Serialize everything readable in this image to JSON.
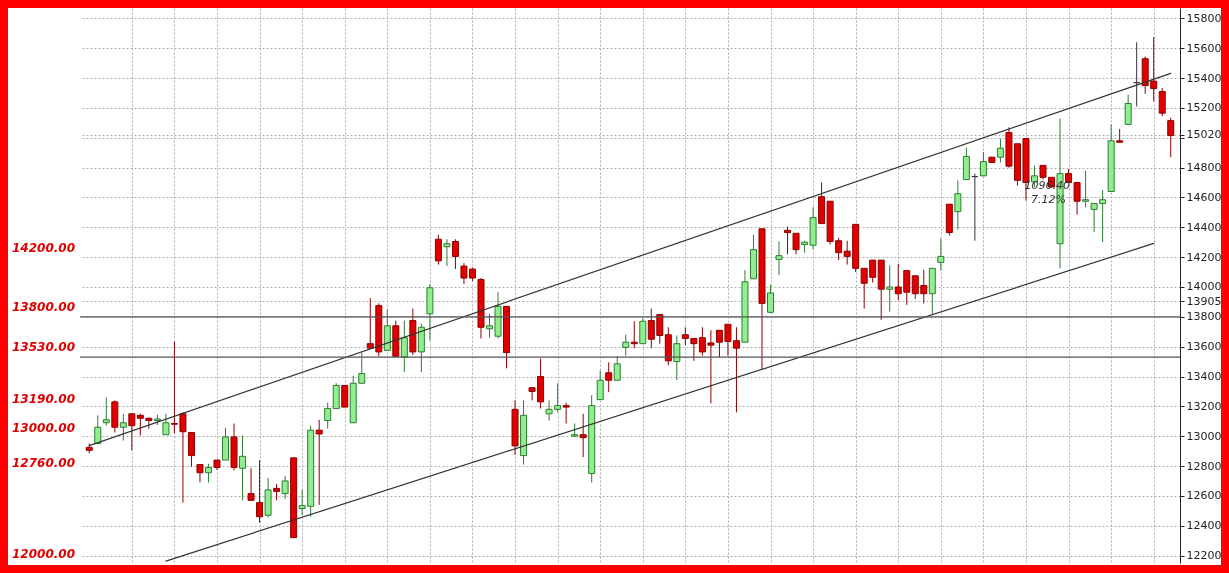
{
  "chart_data": {
    "type": "candlestick",
    "categories": [
      null,
      null,
      null,
      null,
      null,
      null,
      null,
      null,
      null,
      null,
      null,
      null,
      null,
      null,
      null,
      null,
      null,
      null,
      null,
      null,
      null,
      null,
      null,
      null,
      null,
      null,
      null,
      null,
      null,
      null,
      null,
      null,
      null,
      null,
      null,
      null,
      null,
      null,
      null,
      null,
      null,
      null,
      null,
      null,
      null,
      null,
      null,
      null,
      null,
      null,
      null,
      null,
      null,
      null,
      null,
      null,
      null,
      null,
      null,
      null,
      null,
      null,
      null,
      null,
      null,
      null,
      null,
      null,
      null,
      null,
      null,
      null,
      null,
      null,
      null,
      null,
      null,
      null,
      null,
      null,
      null,
      null,
      null,
      null,
      null,
      null,
      null,
      null,
      null,
      null,
      null,
      null,
      null,
      null,
      null,
      null,
      null,
      null,
      null,
      null,
      null,
      null,
      null,
      null,
      null,
      null,
      null,
      null,
      null,
      null,
      null,
      null,
      null,
      null,
      null,
      null,
      null,
      null,
      null,
      null,
      null,
      null,
      null,
      null,
      null,
      null,
      null,
      null
    ],
    "ohlc": [
      [
        12925,
        12950,
        12885,
        12905
      ],
      [
        12950,
        13140,
        12950,
        13060
      ],
      [
        13090,
        13260,
        13070,
        13110
      ],
      [
        13230,
        13240,
        13025,
        13060
      ],
      [
        13060,
        13150,
        12970,
        13090
      ],
      [
        13150,
        13150,
        12905,
        13070
      ],
      [
        13140,
        13150,
        13005,
        13120
      ],
      [
        13120,
        13125,
        13050,
        13105
      ],
      [
        13105,
        13145,
        13075,
        13115
      ],
      [
        13010,
        13150,
        13010,
        13090
      ],
      [
        13085,
        13635,
        13020,
        13080
      ],
      [
        13150,
        13160,
        12555,
        13030
      ],
      [
        13025,
        13025,
        12795,
        12870
      ],
      [
        12810,
        12810,
        12690,
        12755
      ],
      [
        12755,
        12815,
        12690,
        12790
      ],
      [
        12840,
        12840,
        12775,
        12790
      ],
      [
        12840,
        13055,
        12840,
        12995
      ],
      [
        12995,
        13085,
        12770,
        12790
      ],
      [
        12785,
        13005,
        12570,
        12865
      ],
      [
        12615,
        12785,
        12570,
        12570
      ],
      [
        12555,
        12840,
        12420,
        12460
      ],
      [
        12470,
        12720,
        12455,
        12640
      ],
      [
        12650,
        12680,
        12570,
        12630
      ],
      [
        12615,
        12735,
        12580,
        12700
      ],
      [
        12855,
        12855,
        12320,
        12320
      ],
      [
        12515,
        12640,
        12470,
        12535
      ],
      [
        12530,
        13070,
        12460,
        13040
      ],
      [
        13040,
        13110,
        12540,
        13015
      ],
      [
        13105,
        13225,
        13050,
        13185
      ],
      [
        13185,
        13355,
        13185,
        13340
      ],
      [
        13340,
        13340,
        13195,
        13195
      ],
      [
        13090,
        13405,
        13090,
        13355
      ],
      [
        13355,
        13560,
        13355,
        13420
      ],
      [
        13620,
        13925,
        13590,
        13590
      ],
      [
        13875,
        13890,
        13535,
        13565
      ],
      [
        13575,
        13850,
        13575,
        13740
      ],
      [
        13740,
        13775,
        13535,
        13535
      ],
      [
        13530,
        13775,
        13430,
        13660
      ],
      [
        13775,
        13855,
        13545,
        13565
      ],
      [
        13565,
        13755,
        13430,
        13730
      ],
      [
        13820,
        14020,
        13640,
        13995
      ],
      [
        14320,
        14350,
        14150,
        14175
      ],
      [
        14270,
        14320,
        14140,
        14290
      ],
      [
        14305,
        14320,
        14120,
        14205
      ],
      [
        14140,
        14160,
        14020,
        14060
      ],
      [
        14120,
        14130,
        14040,
        14060
      ],
      [
        14050,
        14060,
        13655,
        13730
      ],
      [
        13720,
        13820,
        13660,
        13740
      ],
      [
        13670,
        13965,
        13655,
        13870
      ],
      [
        13870,
        13870,
        13455,
        13560
      ],
      [
        13180,
        13240,
        12875,
        12935
      ],
      [
        12870,
        13240,
        12810,
        13140
      ],
      [
        13325,
        13325,
        13240,
        13300
      ],
      [
        13400,
        13520,
        13185,
        13230
      ],
      [
        13150,
        13240,
        13105,
        13180
      ],
      [
        13180,
        13355,
        13160,
        13205
      ],
      [
        13205,
        13225,
        13085,
        13195
      ],
      [
        13000,
        13085,
        12995,
        13010
      ],
      [
        13010,
        13150,
        12860,
        12990
      ],
      [
        12750,
        13275,
        12690,
        13205
      ],
      [
        13245,
        13440,
        13245,
        13375
      ],
      [
        13425,
        13495,
        13295,
        13375
      ],
      [
        13375,
        13535,
        13375,
        13485
      ],
      [
        13595,
        13680,
        13540,
        13630
      ],
      [
        13630,
        13770,
        13590,
        13620
      ],
      [
        13620,
        13790,
        13620,
        13770
      ],
      [
        13775,
        13855,
        13590,
        13650
      ],
      [
        13815,
        13815,
        13620,
        13675
      ],
      [
        13680,
        13730,
        13475,
        13505
      ],
      [
        13500,
        13675,
        13375,
        13620
      ],
      [
        13680,
        13730,
        13610,
        13655
      ],
      [
        13655,
        13655,
        13505,
        13620
      ],
      [
        13660,
        13730,
        13540,
        13565
      ],
      [
        13625,
        13710,
        13220,
        13610
      ],
      [
        13710,
        13710,
        13530,
        13630
      ],
      [
        13750,
        13750,
        13540,
        13635
      ],
      [
        13640,
        13730,
        13160,
        13590
      ],
      [
        13630,
        14115,
        13630,
        14035
      ],
      [
        14055,
        14350,
        14055,
        14250
      ],
      [
        14390,
        14390,
        13445,
        13890
      ],
      [
        13830,
        14015,
        13830,
        13960
      ],
      [
        14185,
        14305,
        14080,
        14210
      ],
      [
        14380,
        14405,
        14220,
        14365
      ],
      [
        14360,
        14360,
        14220,
        14250
      ],
      [
        14285,
        14310,
        14230,
        14300
      ],
      [
        14280,
        14535,
        14255,
        14465
      ],
      [
        14605,
        14700,
        14425,
        14425
      ],
      [
        14575,
        14575,
        14285,
        14305
      ],
      [
        14310,
        14330,
        14180,
        14230
      ],
      [
        14240,
        14310,
        14150,
        14205
      ],
      [
        14420,
        14420,
        14100,
        14125
      ],
      [
        14125,
        14125,
        13855,
        14025
      ],
      [
        14180,
        14180,
        14030,
        14065
      ],
      [
        14180,
        14180,
        13780,
        13985
      ],
      [
        13985,
        14145,
        13835,
        14000
      ],
      [
        14000,
        14155,
        13910,
        13955
      ],
      [
        14110,
        14110,
        13880,
        13965
      ],
      [
        14075,
        14075,
        13920,
        13955
      ],
      [
        14010,
        14115,
        13890,
        13955
      ],
      [
        13955,
        14125,
        13820,
        14125
      ],
      [
        14165,
        14325,
        14110,
        14205
      ],
      [
        14555,
        14555,
        14345,
        14365
      ],
      [
        14505,
        14715,
        14385,
        14625
      ],
      [
        14720,
        14935,
        14720,
        14875
      ],
      [
        14740,
        14760,
        14310,
        14740
      ],
      [
        14745,
        14905,
        14745,
        14840
      ],
      [
        14870,
        14870,
        14835,
        14835
      ],
      [
        14870,
        14995,
        14835,
        14930
      ],
      [
        15035,
        15070,
        14800,
        14810
      ],
      [
        14960,
        14960,
        14680,
        14715
      ],
      [
        14995,
        14995,
        14580,
        14700
      ],
      [
        14705,
        14815,
        14670,
        14745
      ],
      [
        14815,
        14815,
        14720,
        14735
      ],
      [
        14735,
        14735,
        14670,
        14670
      ],
      [
        14290,
        15130,
        14125,
        14760
      ],
      [
        14760,
        14790,
        14700,
        14700
      ],
      [
        14700,
        14700,
        14485,
        14575
      ],
      [
        14575,
        14780,
        14535,
        14585
      ],
      [
        14520,
        14560,
        14370,
        14560
      ],
      [
        14560,
        14650,
        14300,
        14585
      ],
      [
        14640,
        15090,
        14640,
        14980
      ],
      [
        14980,
        15060,
        14970,
        14970
      ],
      [
        15090,
        15290,
        15090,
        15230
      ],
      [
        15370,
        15640,
        15210,
        15370
      ],
      [
        15530,
        15545,
        15295,
        15350
      ],
      [
        15380,
        15675,
        15245,
        15330
      ],
      [
        15310,
        15335,
        15145,
        15165
      ],
      [
        15115,
        15135,
        14870,
        15015
      ]
    ],
    "series": [
      {
        "type": "line",
        "color": "#333333",
        "values": [
          12937,
          null,
          null,
          null,
          null,
          null,
          null,
          null,
          null,
          null,
          null,
          null,
          null,
          null,
          null,
          null,
          null,
          null,
          null,
          null,
          null,
          null,
          null,
          null,
          null,
          null,
          null,
          null,
          null,
          null,
          null,
          null,
          null,
          null,
          null,
          null,
          null,
          null,
          null,
          null,
          null,
          null,
          null,
          null,
          null,
          null,
          null,
          null,
          null,
          null,
          null,
          null,
          null,
          null,
          null,
          null,
          null,
          null,
          null,
          null,
          null,
          null,
          null,
          null,
          null,
          null,
          null,
          null,
          null,
          null,
          null,
          null,
          null,
          null,
          null,
          null,
          null,
          null,
          null,
          null,
          null,
          null,
          null,
          null,
          null,
          null,
          null,
          null,
          null,
          null,
          null,
          null,
          null,
          null,
          null,
          null,
          null,
          null,
          null,
          null,
          null,
          null,
          null,
          null,
          null,
          null,
          null,
          null,
          null,
          null,
          null,
          null,
          null,
          null,
          null,
          null,
          null,
          null,
          null,
          null,
          null,
          null,
          null,
          null,
          null,
          null,
          null,
          15432
        ]
      },
      {
        "type": "line",
        "color": "#333333",
        "values": [
          null,
          null,
          null,
          null,
          null,
          null,
          null,
          null,
          null,
          12163,
          null,
          null,
          null,
          null,
          null,
          null,
          null,
          null,
          null,
          null,
          null,
          null,
          null,
          null,
          null,
          null,
          null,
          null,
          null,
          null,
          null,
          null,
          null,
          null,
          null,
          null,
          null,
          null,
          null,
          null,
          null,
          null,
          null,
          null,
          null,
          null,
          null,
          null,
          null,
          null,
          null,
          null,
          null,
          null,
          null,
          null,
          null,
          null,
          null,
          null,
          null,
          null,
          null,
          null,
          null,
          null,
          null,
          null,
          null,
          null,
          null,
          null,
          null,
          null,
          null,
          null,
          null,
          null,
          null,
          null,
          null,
          null,
          null,
          null,
          null,
          null,
          null,
          null,
          null,
          null,
          null,
          null,
          null,
          null,
          null,
          null,
          null,
          null,
          null,
          null,
          null,
          null,
          null,
          null,
          null,
          null,
          null,
          null,
          null,
          null,
          null,
          null,
          null,
          null,
          null,
          null,
          null,
          null,
          null,
          null,
          null,
          null,
          null,
          null,
          null,
          14292,
          null,
          null
        ]
      }
    ],
    "ylim": [
      12150,
      15870
    ],
    "yticks": [
      12200,
      12400,
      12600,
      12800,
      13000,
      13200,
      13400,
      13600,
      13800,
      14000,
      14200,
      14400,
      14600,
      14800,
      {
        "value": 15000,
        "label": null
      },
      15200,
      15400,
      15600,
      15800,
      {
        "value": 15020,
        "label": "15020"
      },
      {
        "value": 13905,
        "label": "13905"
      }
    ],
    "tick_labels": "y",
    "grid": true,
    "ref_lines": [
      {
        "axis": "y",
        "value": 13800,
        "label": "13800.00",
        "color": "#555555"
      },
      {
        "axis": "y",
        "value": 13530,
        "label": "13530.00",
        "color": "#555555"
      }
    ],
    "annotations": [
      "14200.00",
      "13190.00",
      "13000.00",
      "12760.00",
      "12000.00",
      "1096.40",
      "7.12%"
    ]
  }
}
